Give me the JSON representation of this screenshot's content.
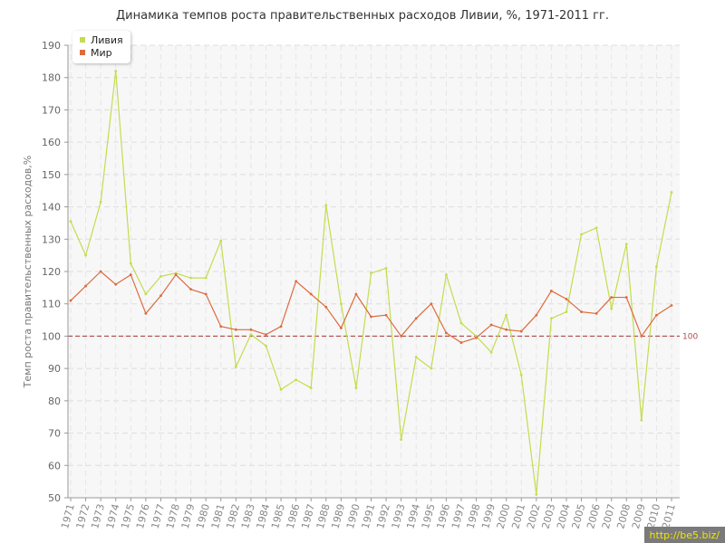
{
  "chart_data": {
    "type": "line",
    "title": "Динамика темпов роста правительственных расходов Ливии, %, 1971-2011 гг.",
    "ylabel": "Темп роста правительственных расходов,%",
    "xlabel": "",
    "ylim": [
      50,
      190
    ],
    "yticks": [
      50,
      60,
      70,
      80,
      90,
      100,
      110,
      120,
      130,
      140,
      150,
      160,
      170,
      180,
      190
    ],
    "grid": true,
    "legend_position": "top-left",
    "categories": [
      "1971",
      "1972",
      "1973",
      "1974",
      "1975",
      "1976",
      "1977",
      "1978",
      "1979",
      "1980",
      "1981",
      "1982",
      "1983",
      "1984",
      "1985",
      "1986",
      "1987",
      "1988",
      "1989",
      "1990",
      "1991",
      "1992",
      "1993",
      "1994",
      "1995",
      "1996",
      "1997",
      "1998",
      "1999",
      "2000",
      "2001",
      "2002",
      "2003",
      "2004",
      "2005",
      "2006",
      "2007",
      "2008",
      "2009",
      "2010",
      "2011"
    ],
    "series": [
      {
        "name": "Ливия",
        "color": "#c3dd4e",
        "values": [
          135.5,
          125,
          141.5,
          182,
          122.5,
          113,
          118.5,
          119.5,
          118,
          118,
          129.5,
          90.5,
          100.5,
          97,
          83.5,
          86.5,
          84,
          140.5,
          110,
          84,
          119.5,
          121,
          68,
          93.5,
          90,
          119,
          104,
          100,
          95,
          106.5,
          88,
          51,
          105.5,
          107.5,
          131.5,
          133.5,
          108.5,
          128.5,
          74,
          121.5,
          144.5
        ]
      },
      {
        "name": "Мир",
        "color": "#dc6b3e",
        "values": [
          111,
          115.5,
          120,
          116,
          119,
          107,
          112.5,
          119,
          114.5,
          113,
          103,
          102,
          102,
          100.5,
          103,
          117,
          113,
          109,
          102.5,
          113,
          106,
          106.5,
          100,
          105.5,
          110,
          101,
          98,
          99.5,
          103.5,
          102,
          101.5,
          106.5,
          114,
          111.5,
          107.5,
          107,
          112,
          112,
          100,
          106.5,
          109.5
        ]
      }
    ],
    "reference_line": {
      "value": 100,
      "label": "100",
      "color": "#b04a4a"
    }
  },
  "watermark": "http://be5.biz/"
}
